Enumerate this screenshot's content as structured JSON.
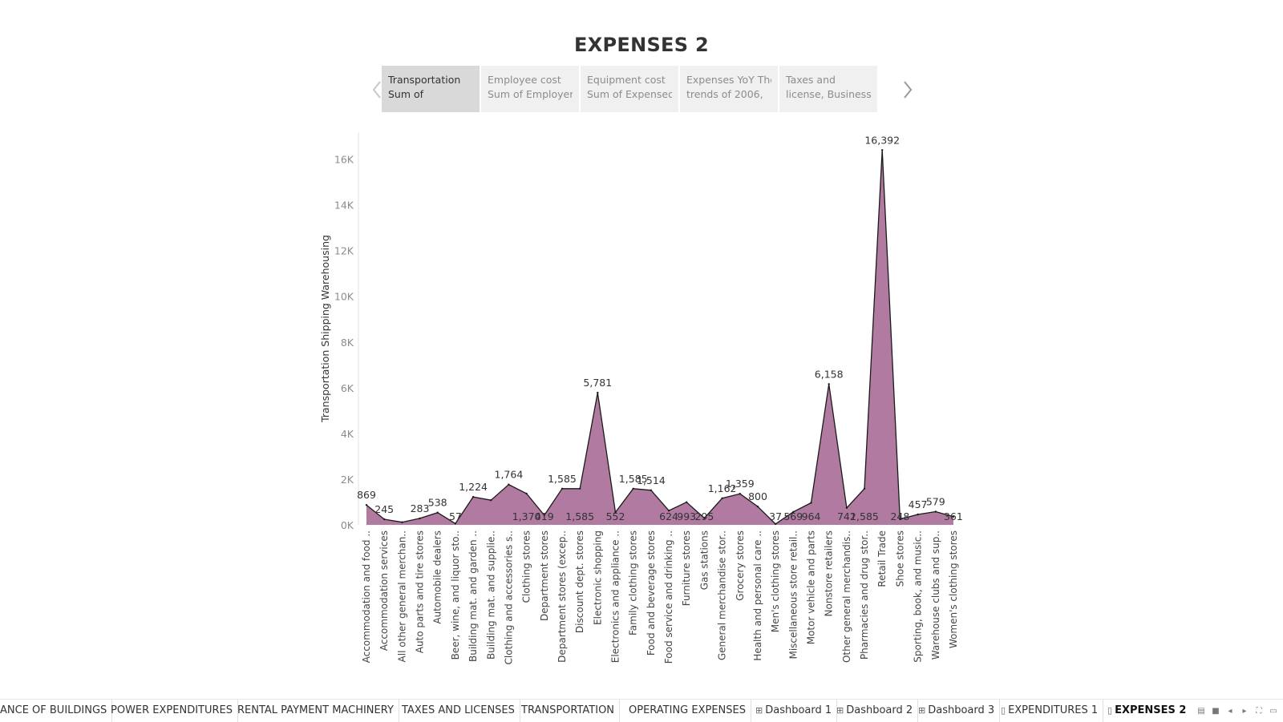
{
  "title": "EXPENSES 2",
  "story_points": [
    {
      "line1": "Transportation",
      "line2": "Sum of",
      "active": true
    },
    {
      "line1": "Employee cost",
      "line2": "Sum of Employer",
      "active": false
    },
    {
      "line1": "Equipment cost",
      "line2": "Sum of Expensed",
      "active": false
    },
    {
      "line1": "Expenses YoY The",
      "line2": "trends of 2006,",
      "active": false
    },
    {
      "line1": "Taxes and",
      "line2": "license, Business",
      "active": false
    }
  ],
  "colors": {
    "area_fill": "#b07aa1",
    "area_stroke": "#1a1a1a",
    "tick_text": "#8c8c8c",
    "label_text": "#333333"
  },
  "chart_data": {
    "type": "area",
    "ylabel": "Transportation Shipping Warehousing",
    "ylim": [
      0,
      17000
    ],
    "y_ticks": [
      0,
      2000,
      4000,
      6000,
      8000,
      10000,
      12000,
      14000,
      16000
    ],
    "y_tick_labels": [
      "0K",
      "2K",
      "4K",
      "6K",
      "8K",
      "10K",
      "12K",
      "14K",
      "16K"
    ],
    "grid": false,
    "categories": [
      "Accommodation and food ..",
      "Accommodation services",
      "All other general merchan..",
      "Auto parts and tire stores",
      "Automobile dealers",
      "Beer, wine, and liquor sto..",
      "Building mat. and garden ..",
      "Building mat. and supplie..",
      "Clothing and accessories s..",
      "Clothing stores",
      "Department stores",
      "Department stores (excep..",
      "Discount dept. stores",
      "Electronic shopping",
      "Electronics and appliance ..",
      "Family clothing stores",
      "Food and beverage stores",
      "Food service and drinking ..",
      "Furniture stores",
      "Gas stations",
      "General merchandise stor..",
      "Grocery stores",
      "Health and personal care ..",
      "Men's clothing stores",
      "Miscellaneous store retail..",
      "Motor vehicle and parts",
      "Nonstore retailers",
      "Other general merchandis..",
      "Pharmacies and drug stor..",
      "Retail Trade",
      "Shoe stores",
      "Sporting, book, and music..",
      "Warehouse clubs and sup..",
      "Women's clothing stores"
    ],
    "values": [
      869,
      245,
      116,
      283,
      538,
      57,
      1224,
      1080,
      1764,
      1370,
      419,
      1585,
      1585,
      5781,
      552,
      1585,
      1514,
      624,
      993,
      295,
      1162,
      1359,
      800,
      37,
      569,
      964,
      6158,
      742,
      1585,
      16392,
      248,
      457,
      579,
      361
    ],
    "data_labels": [
      "869",
      "245",
      "",
      "283",
      "538",
      "57",
      "1,224",
      "",
      "1,764",
      "1,370",
      "419",
      "1,585",
      "1,585",
      "5,781",
      "552",
      "1,585",
      "1,514",
      "624",
      "993",
      "295",
      "1,162",
      "1,359",
      "800",
      "37",
      "569",
      "964",
      "6,158",
      "742",
      "1,585",
      "16,392",
      "248",
      "457",
      "579",
      "361"
    ],
    "label_pos": [
      "above",
      "above",
      "none",
      "above",
      "above",
      "below",
      "above",
      "none",
      "above",
      "below",
      "below",
      "above",
      "below",
      "above",
      "below",
      "above",
      "above",
      "below",
      "below",
      "below",
      "above",
      "above",
      "above",
      "below",
      "below",
      "below",
      "above",
      "below",
      "below",
      "above",
      "below",
      "above",
      "above",
      "below"
    ]
  },
  "sheet_tabs": [
    {
      "label": "ANCE OF BUILDINGS",
      "icon": "",
      "active": false
    },
    {
      "label": "POWER EXPENDITURES",
      "icon": "",
      "active": false
    },
    {
      "label": "RENTAL PAYMENT MACHINERY",
      "icon": "",
      "active": false
    },
    {
      "label": "TAXES AND LICENSES",
      "icon": "",
      "active": false
    },
    {
      "label": "TRANSPORTATION",
      "icon": "",
      "active": false
    },
    {
      "label": "OPERATING EXPENSES",
      "icon": "",
      "active": false
    },
    {
      "label": "Dashboard 1",
      "icon": "dashboard-icon",
      "active": false
    },
    {
      "label": "Dashboard 2",
      "icon": "dashboard-icon",
      "active": false
    },
    {
      "label": "Dashboard 3",
      "icon": "dashboard-icon",
      "active": false
    },
    {
      "label": "EXPENDITURES 1",
      "icon": "story-icon",
      "active": false
    },
    {
      "label": "EXPENSES 2",
      "icon": "story-icon",
      "active": true
    }
  ]
}
